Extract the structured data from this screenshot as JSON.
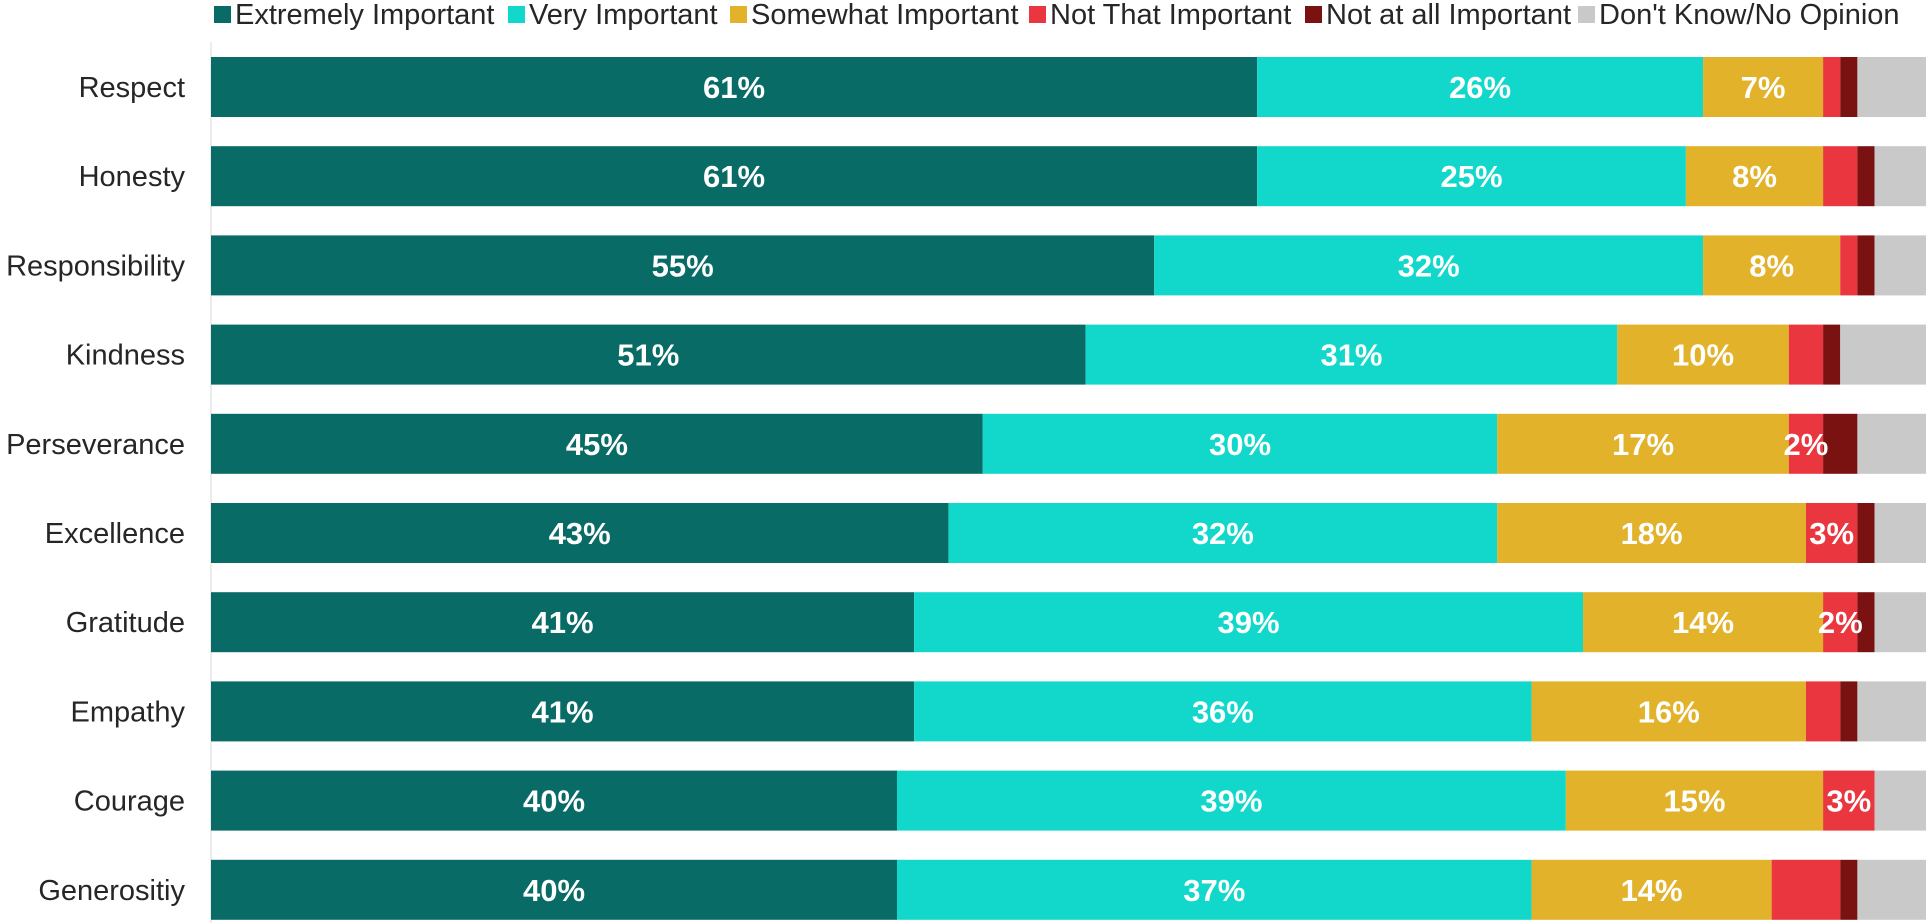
{
  "chart_data": {
    "type": "bar",
    "orientation": "horizontal",
    "stacked": true,
    "title": "",
    "xlabel": "",
    "ylabel": "",
    "xlim": [
      0,
      100
    ],
    "grid": false,
    "legend_position": "top",
    "categories": [
      "Respect",
      "Honesty",
      "Responsibility",
      "Kindness",
      "Perseverance",
      "Excellence",
      "Gratitude",
      "Empathy",
      "Courage",
      "Generositiy"
    ],
    "series": [
      {
        "name": "Extremely Important",
        "color": "#086b66",
        "values": [
          61,
          61,
          55,
          51,
          45,
          43,
          41,
          41,
          40,
          40
        ],
        "labels": [
          "61%",
          "61%",
          "55%",
          "51%",
          "45%",
          "43%",
          "41%",
          "41%",
          "40%",
          "40%"
        ]
      },
      {
        "name": "Very Important",
        "color": "#12d8cc",
        "values": [
          26,
          25,
          32,
          31,
          30,
          32,
          39,
          36,
          39,
          37
        ],
        "labels": [
          "26%",
          "25%",
          "32%",
          "31%",
          "30%",
          "32%",
          "39%",
          "36%",
          "39%",
          "37%"
        ]
      },
      {
        "name": "Somewhat Important",
        "color": "#e1b22a",
        "values": [
          7,
          8,
          8,
          10,
          17,
          18,
          14,
          16,
          15,
          14
        ],
        "labels": [
          "7%",
          "8%",
          "8%",
          "10%",
          "17%",
          "18%",
          "14%",
          "16%",
          "15%",
          "14%"
        ]
      },
      {
        "name": "Not That Important",
        "color": "#e9363f",
        "values": [
          1,
          2,
          1,
          2,
          2,
          3,
          2,
          2,
          3,
          4
        ],
        "labels": [
          "",
          "",
          "",
          "",
          "2%",
          "3%",
          "2%",
          "",
          "3%",
          ""
        ]
      },
      {
        "name": "Not at all Important",
        "color": "#7a1212",
        "values": [
          1,
          1,
          1,
          1,
          2,
          1,
          1,
          1,
          0,
          1
        ],
        "labels": [
          "",
          "",
          "",
          "",
          "",
          "",
          "",
          "",
          "",
          ""
        ]
      },
      {
        "name": "Don't Know/No Opinion",
        "color": "#c9c9c9",
        "values": [
          4,
          3,
          3,
          5,
          4,
          3,
          3,
          4,
          3,
          5
        ],
        "labels": [
          "",
          "",
          "",
          "",
          "",
          "",
          "",
          "",
          "",
          ""
        ]
      }
    ]
  }
}
